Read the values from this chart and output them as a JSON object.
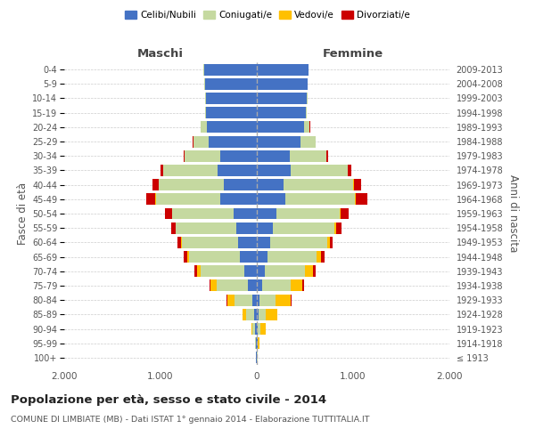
{
  "age_groups": [
    "100+",
    "95-99",
    "90-94",
    "85-89",
    "80-84",
    "75-79",
    "70-74",
    "65-69",
    "60-64",
    "55-59",
    "50-54",
    "45-49",
    "40-44",
    "35-39",
    "30-34",
    "25-29",
    "20-24",
    "15-19",
    "10-14",
    "5-9",
    "0-4"
  ],
  "birth_years": [
    "≤ 1913",
    "1914-1918",
    "1919-1923",
    "1924-1928",
    "1929-1933",
    "1934-1938",
    "1939-1943",
    "1944-1948",
    "1949-1953",
    "1954-1958",
    "1959-1963",
    "1964-1968",
    "1969-1973",
    "1974-1978",
    "1979-1983",
    "1984-1988",
    "1989-1993",
    "1994-1998",
    "1999-2003",
    "2004-2008",
    "2009-2013"
  ],
  "maschi": {
    "celibi": [
      5,
      8,
      15,
      30,
      50,
      90,
      130,
      175,
      190,
      210,
      240,
      380,
      340,
      410,
      380,
      500,
      520,
      530,
      530,
      540,
      550
    ],
    "coniugati": [
      3,
      10,
      30,
      80,
      180,
      330,
      450,
      530,
      590,
      630,
      640,
      670,
      680,
      560,
      370,
      160,
      60,
      10,
      5,
      2,
      1
    ],
    "vedovi": [
      1,
      5,
      15,
      40,
      80,
      60,
      40,
      20,
      10,
      5,
      3,
      2,
      1,
      1,
      0,
      0,
      0,
      0,
      0,
      0,
      0
    ],
    "divorziati": [
      0,
      0,
      0,
      2,
      5,
      15,
      30,
      30,
      30,
      40,
      70,
      100,
      60,
      30,
      10,
      5,
      2,
      0,
      0,
      0,
      0
    ]
  },
  "femmine": {
    "nubili": [
      4,
      5,
      10,
      20,
      30,
      60,
      80,
      110,
      140,
      170,
      200,
      300,
      280,
      350,
      340,
      450,
      490,
      510,
      520,
      530,
      540
    ],
    "coniugate": [
      2,
      8,
      25,
      70,
      160,
      290,
      420,
      510,
      590,
      640,
      660,
      720,
      720,
      590,
      380,
      160,
      60,
      10,
      4,
      2,
      1
    ],
    "vedove": [
      2,
      15,
      60,
      120,
      160,
      120,
      80,
      50,
      25,
      15,
      10,
      8,
      5,
      3,
      2,
      0,
      0,
      0,
      0,
      0,
      0
    ],
    "divorziate": [
      0,
      0,
      2,
      5,
      8,
      20,
      30,
      30,
      35,
      50,
      80,
      120,
      80,
      35,
      15,
      5,
      2,
      0,
      0,
      0,
      0
    ]
  },
  "colors": {
    "celibi": "#4472c4",
    "coniugati": "#c5d9a0",
    "vedovi": "#ffc000",
    "divorziati": "#cc0000"
  },
  "xlim": 2000,
  "title": "Popolazione per età, sesso e stato civile - 2014",
  "subtitle": "COMUNE DI LIMBIATE (MB) - Dati ISTAT 1° gennaio 2014 - Elaborazione TUTTITALIA.IT",
  "ylabel_left": "Fasce di età",
  "ylabel_right": "Anni di nascita",
  "xlabel_maschi": "Maschi",
  "xlabel_femmine": "Femmine",
  "legend_labels": [
    "Celibi/Nubili",
    "Coniugati/e",
    "Vedovi/e",
    "Divorziati/e"
  ],
  "background_color": "#ffffff",
  "bar_height": 0.8
}
